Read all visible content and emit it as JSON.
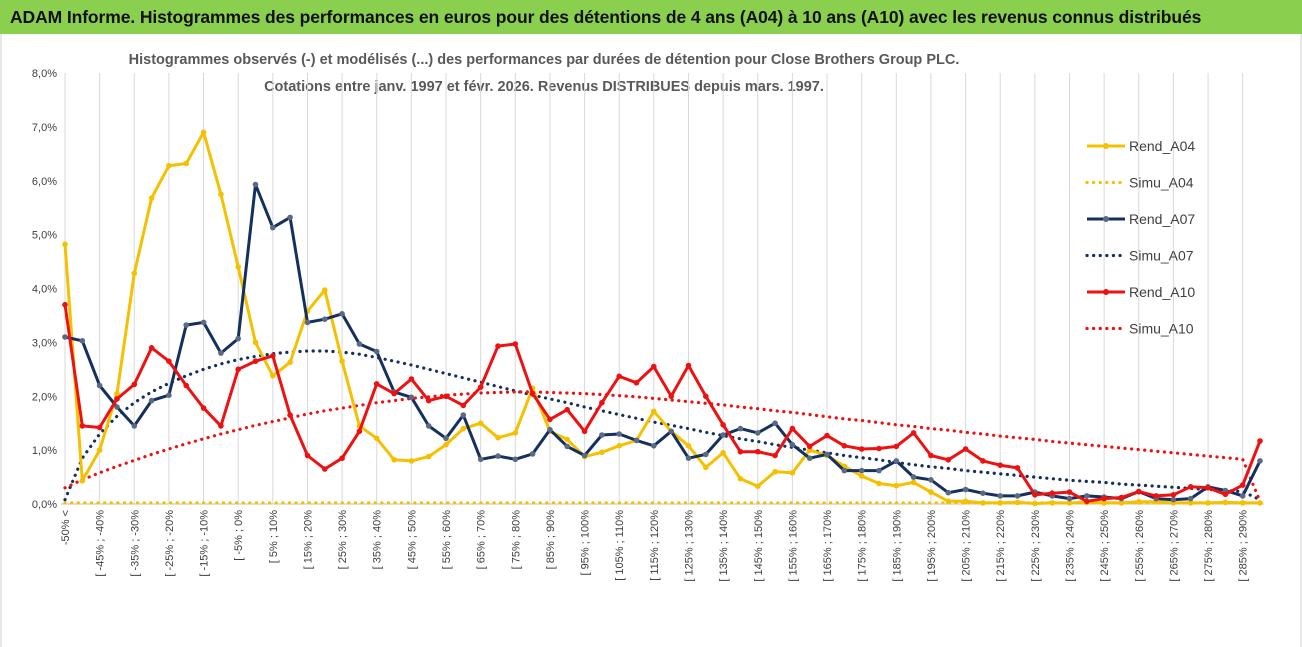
{
  "header": {
    "title": "ADAM Informe. Histogrammes des performances en euros pour des détentions de 4 ans (A04) à 10 ans (A10) avec les revenus connus distribués"
  },
  "chart_data": {
    "type": "line",
    "title": [
      "Histogrammes observés (-)  et modélisés (...)  des performances par durées de détention pour Close Brothers Group PLC.",
      "Cotations entre janv. 1997 et févr.  2026.  Revenus DISTRIBUES depuis mars. 1997."
    ],
    "ylim": [
      0,
      8
    ],
    "yticks": [
      "0,0%",
      "1,0%",
      "2,0%",
      "3,0%",
      "4,0%",
      "5,0%",
      "6,0%",
      "7,0%",
      "8,0%"
    ],
    "xticks": [
      "-50% <",
      "[ -45% ; -40%",
      "[ -35% ; -30%",
      "[ -25% ; -20%",
      "[ -15% ; -10%",
      "[ -5% ; 0%",
      "[ 5% ; 10%",
      "[ 15% ; 20%",
      "[ 25% ; 30%",
      "[ 35% ; 40%",
      "[ 45% ; 50%",
      "[ 55% ; 60%",
      "[ 65% ; 70%",
      "[ 75% ; 80%",
      "[ 85% ; 90%",
      "[ 95% ; 100%",
      "[ 105% ; 110%",
      "[ 115% ; 120%",
      "[ 125% ; 130%",
      "[ 135% ; 140%",
      "[ 145% ; 150%",
      "[ 155% ; 160%",
      "[ 165% ; 170%",
      "[ 175% ; 180%",
      "[ 185% ; 190%",
      "[ 195% ; 200%",
      "[ 205% ; 210%",
      "[ 215% ; 220%",
      "[ 225% ; 230%",
      "[ 235% ; 240%",
      "[ 245% ; 250%",
      "[ 255% ; 260%",
      "[ 265% ; 270%",
      "[ 275% ; 280%",
      "[ 285% ; 290%"
    ],
    "x_count": 70,
    "legend_position": "right",
    "series": [
      {
        "name": "Rend_A04",
        "color": "#f5c000",
        "style": "solid",
        "values": [
          4.82,
          0.43,
          1.0,
          2.05,
          4.28,
          5.68,
          6.28,
          6.32,
          6.9,
          5.75,
          4.4,
          3.0,
          2.38,
          2.63,
          3.58,
          3.97,
          2.65,
          1.45,
          1.22,
          0.82,
          0.8,
          0.88,
          1.1,
          1.4,
          1.5,
          1.23,
          1.32,
          2.15,
          1.35,
          1.2,
          0.88,
          0.96,
          1.08,
          1.18,
          1.72,
          1.35,
          1.08,
          0.68,
          0.95,
          0.47,
          0.33,
          0.6,
          0.58,
          1.0,
          0.9,
          0.7,
          0.52,
          0.38,
          0.34,
          0.4,
          0.22,
          0.05,
          0.05,
          0.02,
          0.02,
          0.03,
          0.01,
          0.02,
          0.02,
          0.03,
          0.02,
          0.02,
          0.04,
          0.04,
          0.02,
          0.02,
          0.02,
          0.03,
          0.02,
          0.02
        ]
      },
      {
        "name": "Simu_A04",
        "color": "#f5c000",
        "style": "dotted",
        "values": [
          0.02,
          0.02,
          0.02,
          0.02,
          0.02,
          0.02,
          0.02,
          0.02,
          0.02,
          0.02,
          0.02,
          0.02,
          0.02,
          0.02,
          0.02,
          0.02,
          0.02,
          0.02,
          0.02,
          0.02,
          0.02,
          0.02,
          0.02,
          0.02,
          0.02,
          0.02,
          0.02,
          0.02,
          0.02,
          0.02,
          0.02,
          0.02,
          0.02,
          0.02,
          0.02,
          0.02,
          0.02,
          0.02,
          0.02,
          0.02,
          0.02,
          0.02,
          0.02,
          0.02,
          0.02,
          0.02,
          0.02,
          0.02,
          0.02,
          0.02,
          0.02,
          0.02,
          0.02,
          0.02,
          0.02,
          0.02,
          0.02,
          0.02,
          0.02,
          0.02,
          0.02,
          0.02,
          0.02,
          0.02,
          0.02,
          0.02,
          0.02,
          0.02,
          0.02,
          0.02
        ]
      },
      {
        "name": "Rend_A07",
        "color": "#14305e",
        "style": "solid",
        "values": [
          3.1,
          3.03,
          2.2,
          1.8,
          1.45,
          1.92,
          2.02,
          3.32,
          3.37,
          2.8,
          3.07,
          5.93,
          5.13,
          5.32,
          3.37,
          3.43,
          3.53,
          2.97,
          2.83,
          2.08,
          1.98,
          1.45,
          1.22,
          1.65,
          0.83,
          0.89,
          0.83,
          0.93,
          1.38,
          1.07,
          0.9,
          1.28,
          1.3,
          1.18,
          1.08,
          1.35,
          0.85,
          0.92,
          1.28,
          1.4,
          1.32,
          1.5,
          1.1,
          0.85,
          0.92,
          0.62,
          0.62,
          0.62,
          0.8,
          0.5,
          0.45,
          0.21,
          0.27,
          0.2,
          0.15,
          0.15,
          0.22,
          0.15,
          0.1,
          0.15,
          0.13,
          0.1,
          0.23,
          0.1,
          0.08,
          0.1,
          0.32,
          0.25,
          0.15,
          0.8
        ]
      },
      {
        "name": "Simu_A07",
        "color": "#14305e",
        "style": "dotted",
        "values": [
          0.08,
          0.85,
          1.3,
          1.63,
          1.88,
          2.08,
          2.24,
          2.38,
          2.5,
          2.6,
          2.68,
          2.74,
          2.79,
          2.82,
          2.84,
          2.84,
          2.82,
          2.78,
          2.72,
          2.65,
          2.58,
          2.5,
          2.42,
          2.34,
          2.26,
          2.18,
          2.1,
          2.02,
          1.95,
          1.88,
          1.8,
          1.73,
          1.66,
          1.59,
          1.52,
          1.46,
          1.4,
          1.33,
          1.27,
          1.21,
          1.16,
          1.1,
          1.05,
          1.0,
          0.95,
          0.9,
          0.86,
          0.82,
          0.77,
          0.73,
          0.69,
          0.66,
          0.62,
          0.59,
          0.56,
          0.53,
          0.5,
          0.47,
          0.44,
          0.42,
          0.4,
          0.37,
          0.35,
          0.33,
          0.31,
          0.29,
          0.27,
          0.25,
          0.23,
          0.08
        ]
      },
      {
        "name": "Rend_A10",
        "color": "#ee1111",
        "style": "solid",
        "values": [
          3.7,
          1.45,
          1.42,
          1.95,
          2.22,
          2.9,
          2.65,
          2.2,
          1.78,
          1.45,
          2.5,
          2.65,
          2.75,
          1.65,
          0.9,
          0.65,
          0.85,
          1.35,
          2.23,
          2.05,
          2.32,
          1.92,
          2.0,
          1.83,
          2.17,
          2.93,
          2.97,
          2.05,
          1.57,
          1.75,
          1.35,
          1.88,
          2.37,
          2.25,
          2.55,
          2.0,
          2.57,
          2.0,
          1.47,
          0.97,
          0.97,
          0.9,
          1.4,
          1.07,
          1.27,
          1.08,
          1.02,
          1.03,
          1.07,
          1.32,
          0.9,
          0.82,
          1.02,
          0.8,
          0.72,
          0.67,
          0.17,
          0.2,
          0.22,
          0.05,
          0.1,
          0.12,
          0.23,
          0.15,
          0.17,
          0.32,
          0.3,
          0.18,
          0.35,
          1.17
        ]
      },
      {
        "name": "Simu_A10",
        "color": "#ee1111",
        "style": "dotted",
        "values": [
          0.3,
          0.45,
          0.58,
          0.7,
          0.81,
          0.92,
          1.02,
          1.12,
          1.21,
          1.3,
          1.38,
          1.46,
          1.53,
          1.6,
          1.67,
          1.73,
          1.78,
          1.83,
          1.88,
          1.92,
          1.96,
          1.99,
          2.02,
          2.04,
          2.06,
          2.07,
          2.08,
          2.08,
          2.07,
          2.06,
          2.05,
          2.03,
          2.01,
          1.99,
          1.96,
          1.93,
          1.9,
          1.87,
          1.84,
          1.8,
          1.77,
          1.73,
          1.7,
          1.66,
          1.62,
          1.58,
          1.55,
          1.51,
          1.47,
          1.44,
          1.4,
          1.37,
          1.33,
          1.3,
          1.26,
          1.23,
          1.2,
          1.16,
          1.13,
          1.1,
          1.07,
          1.04,
          1.01,
          0.98,
          0.95,
          0.92,
          0.89,
          0.86,
          0.83,
          0.05
        ]
      }
    ]
  }
}
